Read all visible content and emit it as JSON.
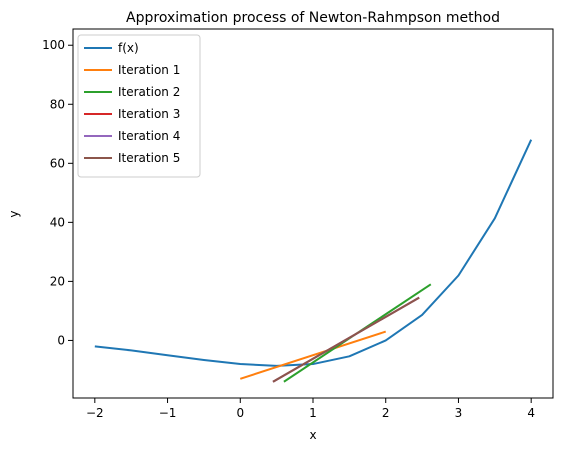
{
  "chart_data": {
    "type": "line",
    "title": "Approximation process of Newton-Rahmpson method",
    "xlabel": "x",
    "ylabel": "y",
    "xlim": [
      -2.3,
      4.3
    ],
    "ylim": [
      -19.5,
      105.5
    ],
    "xticks": [
      -2,
      -1,
      0,
      1,
      2,
      3,
      4
    ],
    "yticks": [
      0,
      20,
      40,
      60,
      80,
      100
    ],
    "grid": false,
    "legend_position": "top-left",
    "series": [
      {
        "name": "f(x)",
        "color": "#1f77b4",
        "points": [
          [
            -2.0,
            -2.0
          ],
          [
            -1.5,
            -3.375
          ],
          [
            -1.0,
            -5.0
          ],
          [
            -0.5,
            -6.625
          ],
          [
            0.0,
            -8.0
          ],
          [
            0.5,
            -8.625
          ],
          [
            1.0,
            -8.0
          ],
          [
            1.5,
            -5.375
          ],
          [
            2.0,
            0.0
          ],
          [
            2.5,
            8.625
          ],
          [
            3.0,
            22.0
          ],
          [
            3.5,
            41.375
          ],
          [
            4.0,
            68.0
          ]
        ]
      },
      {
        "name": "Iteration 1",
        "color": "#ff7f0e",
        "points": [
          [
            0.0,
            -13.0
          ],
          [
            2.0,
            3.0
          ]
        ]
      },
      {
        "name": "Iteration 2",
        "color": "#2ca02c",
        "points": [
          [
            0.6,
            -14.0
          ],
          [
            2.62,
            19.0
          ]
        ]
      },
      {
        "name": "Iteration 3",
        "color": "#d62728",
        "points": [
          [
            0.45,
            -14.0
          ],
          [
            2.46,
            14.5
          ]
        ]
      },
      {
        "name": "Iteration 4",
        "color": "#9467bd",
        "points": [
          [
            0.45,
            -14.0
          ],
          [
            2.46,
            14.5
          ]
        ]
      },
      {
        "name": "Iteration 5",
        "color": "#8c564b",
        "points": [
          [
            0.45,
            -14.0
          ],
          [
            2.46,
            14.5
          ]
        ]
      }
    ]
  }
}
